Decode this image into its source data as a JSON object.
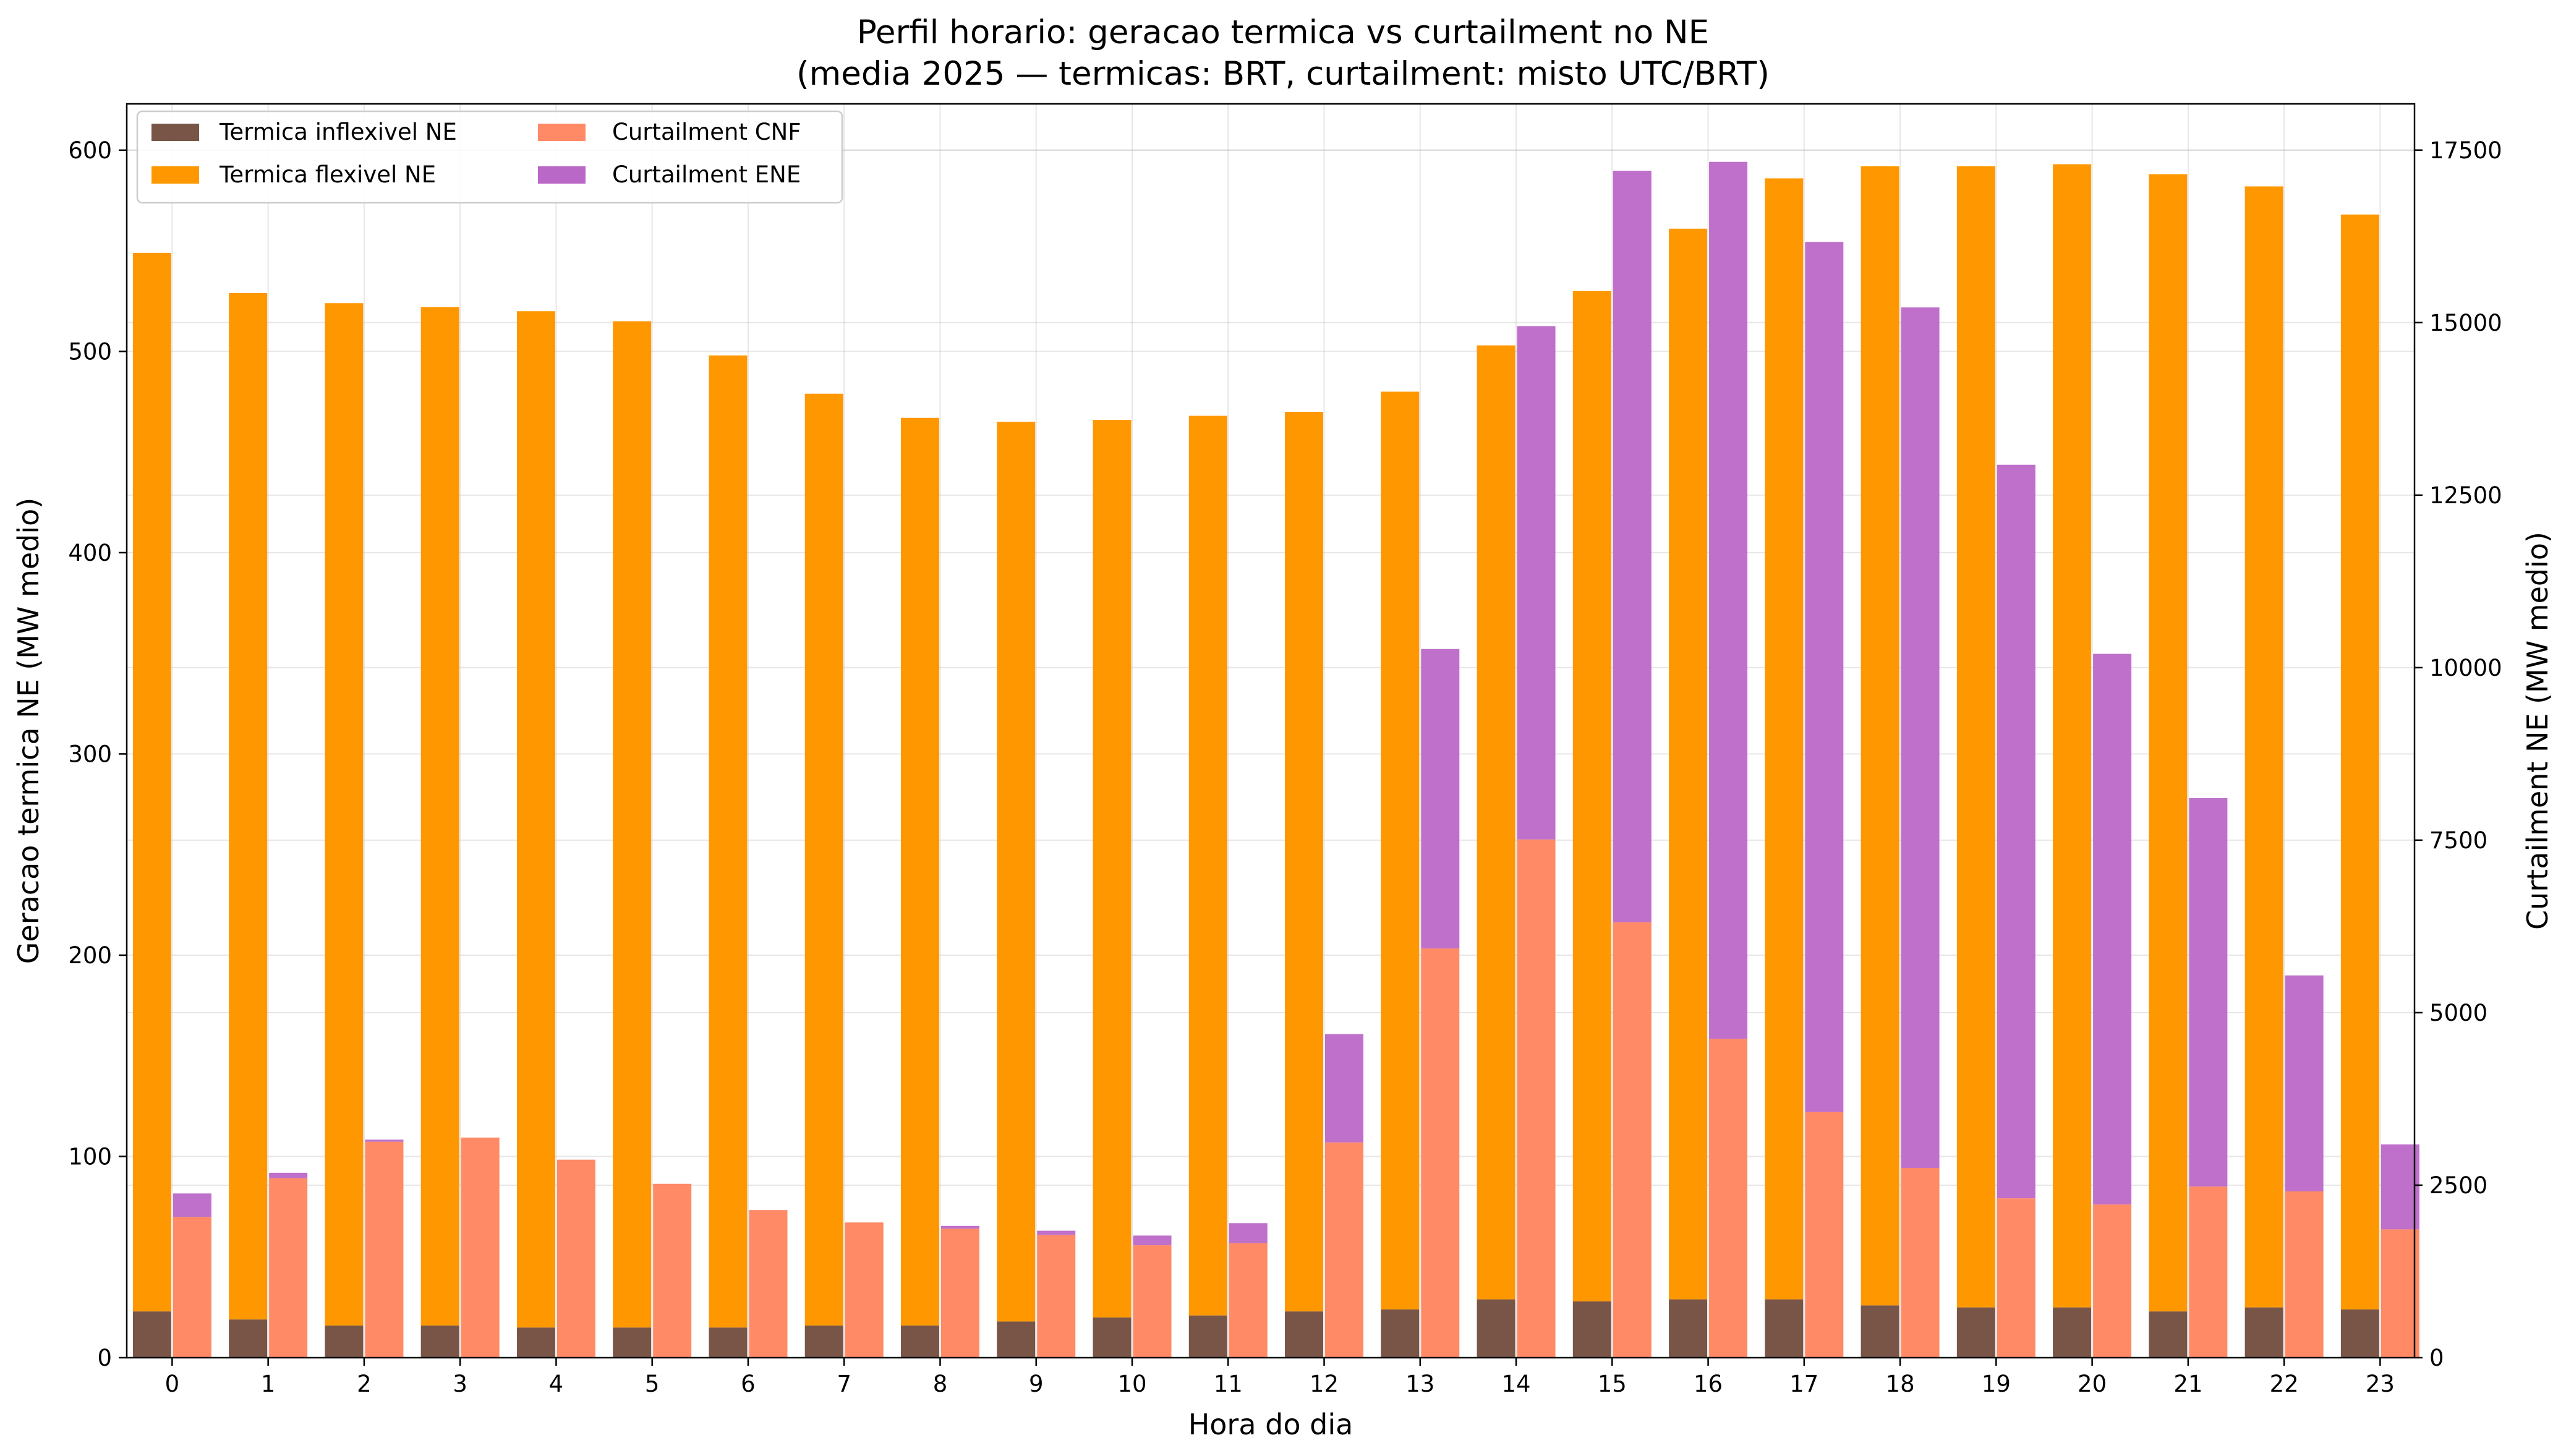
{
  "chart_data": {
    "type": "bar",
    "title_line1": "Perfil horario: geracao termica vs curtailment no NE",
    "title_line2": "(media 2025 — termicas: BRT, curtailment: misto UTC/BRT)",
    "xlabel": "Hora do dia",
    "ylabel_left": "Geracao termica NE (MW medio)",
    "ylabel_right": "Curtailment NE (MW medio)",
    "ylim_left": [
      0,
      623
    ],
    "ylim_right": [
      0,
      18170
    ],
    "yticks_left": [
      0,
      100,
      200,
      300,
      400,
      500,
      600
    ],
    "yticks_right": [
      0,
      2500,
      5000,
      7500,
      10000,
      12500,
      15000,
      17500
    ],
    "grid": true,
    "legend_position": "upper-left",
    "categories": [
      "0",
      "1",
      "2",
      "3",
      "4",
      "5",
      "6",
      "7",
      "8",
      "9",
      "10",
      "11",
      "12",
      "13",
      "14",
      "15",
      "16",
      "17",
      "18",
      "19",
      "20",
      "21",
      "22",
      "23"
    ],
    "series": [
      {
        "name": "Termica inflexivel NE",
        "axis": "left",
        "color": "#795548",
        "values": [
          23,
          19,
          16,
          16,
          15,
          15,
          15,
          16,
          16,
          18,
          20,
          21,
          23,
          24,
          29,
          28,
          29,
          29,
          26,
          25,
          25,
          23,
          25,
          24
        ]
      },
      {
        "name": "Termica flexivel NE",
        "axis": "left",
        "color": "#ff9800",
        "stacked_on": "Termica inflexivel NE",
        "values": [
          526,
          510,
          508,
          506,
          505,
          500,
          483,
          463,
          451,
          447,
          446,
          447,
          447,
          456,
          474,
          502,
          532,
          557,
          566,
          567,
          568,
          565,
          557,
          544
        ]
      },
      {
        "name": "Curtailment CNF",
        "axis": "right",
        "color": "#ff8a65",
        "values": [
          2040,
          2600,
          3130,
          3190,
          2870,
          2520,
          2140,
          1960,
          1870,
          1780,
          1630,
          1660,
          3120,
          5930,
          7510,
          6310,
          4620,
          3560,
          2750,
          2310,
          2220,
          2480,
          2410,
          1860
        ]
      },
      {
        "name": "Curtailment ENE",
        "axis": "right",
        "color": "#ba68c8",
        "stacked_on": "Curtailment CNF",
        "values": [
          340,
          80,
          30,
          0,
          0,
          0,
          0,
          0,
          40,
          60,
          140,
          290,
          1570,
          4340,
          7440,
          10890,
          12710,
          12610,
          12470,
          10630,
          7980,
          5630,
          3130,
          1230
        ]
      }
    ]
  }
}
